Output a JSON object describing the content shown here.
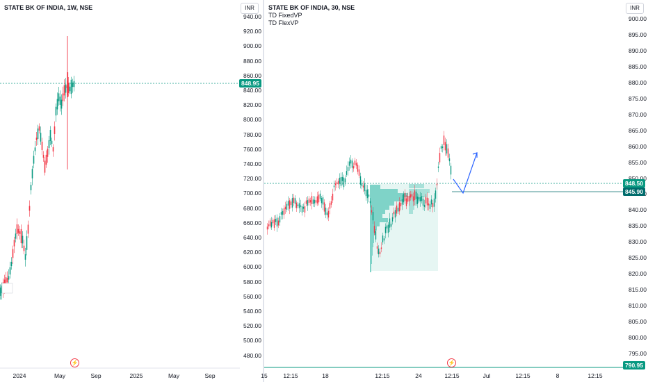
{
  "left_chart": {
    "title": "STATE BK OF INDIA, 1W, NSE",
    "currency": "INR",
    "y_labels": [
      "940.00",
      "920.00",
      "900.00",
      "880.00",
      "860.00",
      "840.00",
      "820.00",
      "800.00",
      "780.00",
      "760.00",
      "740.00",
      "720.00",
      "700.00",
      "680.00",
      "660.00",
      "640.00",
      "620.00",
      "600.00",
      "580.00",
      "560.00",
      "540.00",
      "520.00",
      "500.00",
      "480.00"
    ],
    "last_price": "848.95",
    "x_labels": [
      "2024",
      "May",
      "Sep",
      "2025",
      "May",
      "Sep"
    ],
    "colors": {
      "up": "#089981",
      "down": "#f23645",
      "price_line": "#089981"
    }
  },
  "right_chart": {
    "title": "STATE BK OF INDIA, 30, NSE",
    "currency": "INR",
    "indicators": [
      "TD FixedVP",
      "TD FlexVP"
    ],
    "y_labels": [
      "900.00",
      "895.00",
      "890.00",
      "885.00",
      "880.00",
      "875.00",
      "870.00",
      "865.00",
      "860.00",
      "855.00",
      "850.00",
      "845.00",
      "840.00",
      "835.00",
      "830.00",
      "825.00",
      "820.00",
      "815.00",
      "810.00",
      "805.00",
      "800.00",
      "795.00"
    ],
    "price_tags": {
      "last": "848.50",
      "level": "845.90",
      "bottom": "790.95"
    },
    "x_labels": [
      "12:15",
      "18",
      "12:15",
      "24",
      "12:15",
      "Jul",
      "12:15",
      "8",
      "12:15",
      "15"
    ],
    "colors": {
      "up": "#089981",
      "down": "#f23645",
      "profile": "#7fd3c8",
      "arrow": "#2962ff"
    }
  }
}
